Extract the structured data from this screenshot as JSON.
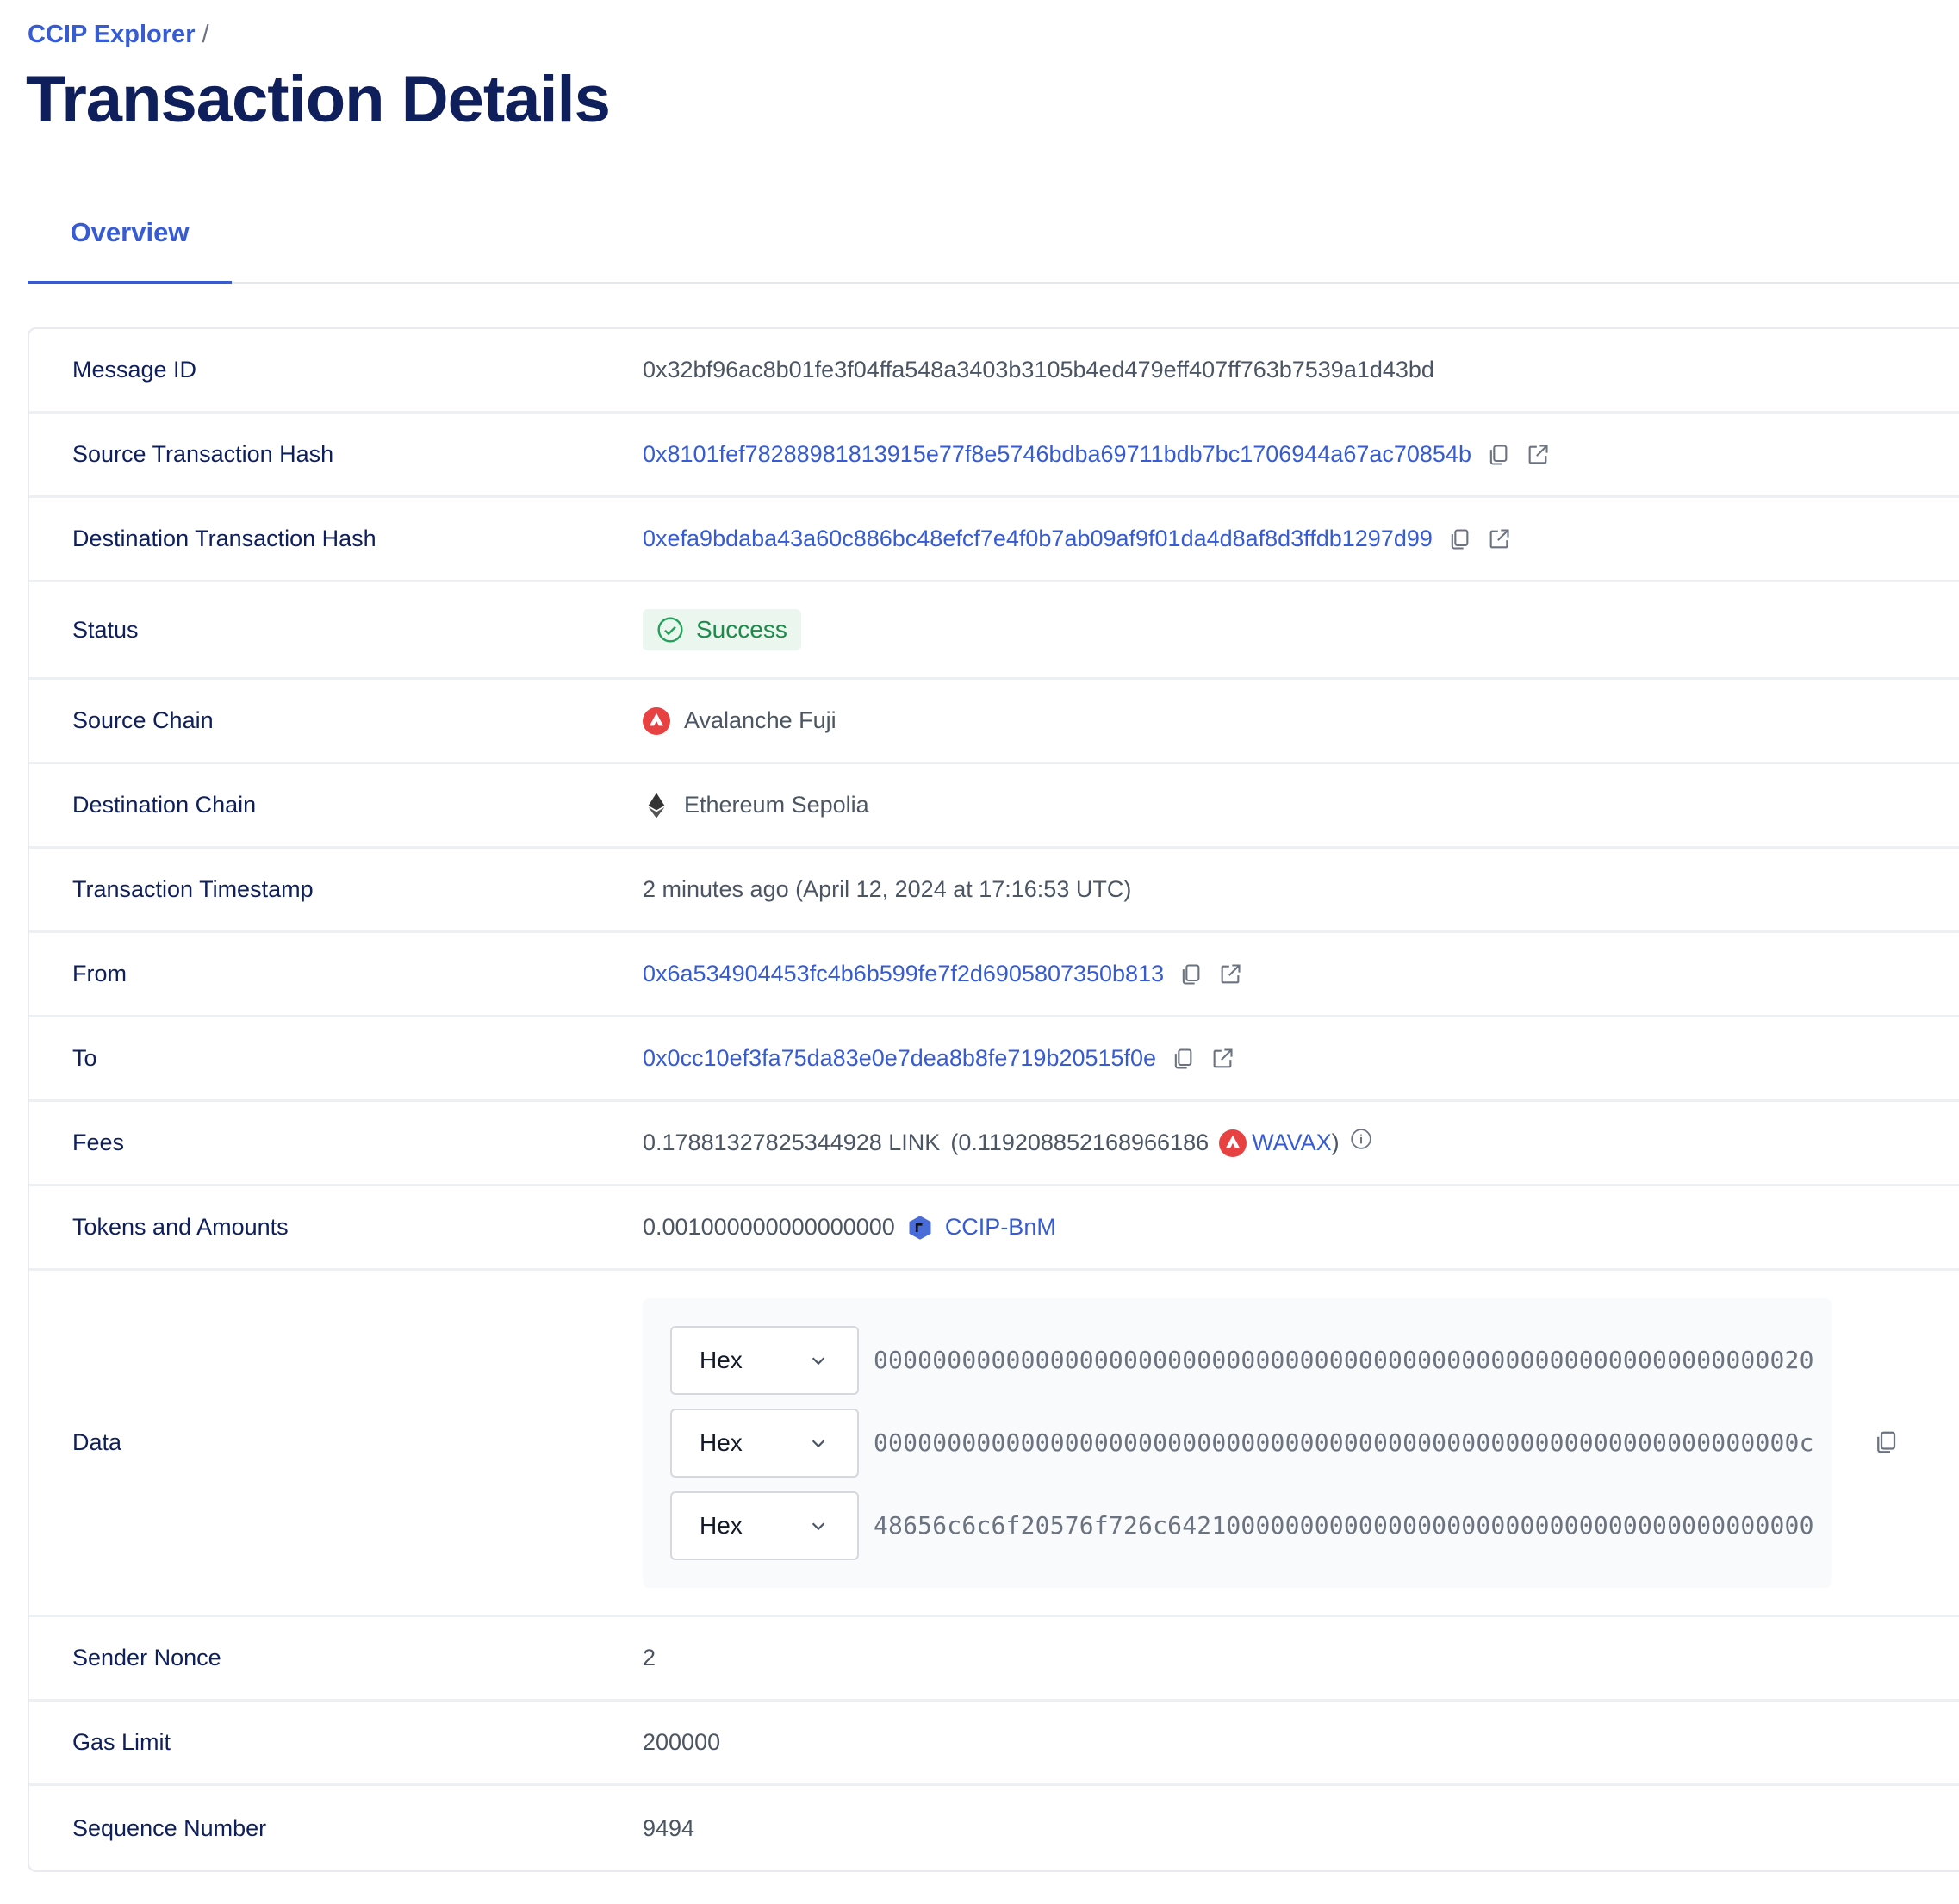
{
  "breadcrumb": {
    "root": "CCIP Explorer",
    "separator": "/"
  },
  "page_title": "Transaction Details",
  "tabs": [
    {
      "label": "Overview",
      "active": true
    }
  ],
  "colors": {
    "accent": "#375bd2",
    "success": "#1f8a4c",
    "avalanche": "#e84142",
    "heading": "#0f1f5c"
  },
  "details": {
    "message_id": {
      "label": "Message ID",
      "value": "0x32bf96ac8b01fe3f04ffa548a3403b3105b4ed479eff407ff763b7539a1d43bd"
    },
    "source_tx": {
      "label": "Source Transaction Hash",
      "value": "0x8101fef78288981813915e77f8e5746bdba69711bdb7bc1706944a67ac70854b"
    },
    "dest_tx": {
      "label": "Destination Transaction Hash",
      "value": "0xefa9bdaba43a60c886bc48efcf7e4f0b7ab09af9f01da4d8af8d3ffdb1297d99"
    },
    "status": {
      "label": "Status",
      "value": "Success",
      "icon": "check-circle-icon"
    },
    "source_chain": {
      "label": "Source Chain",
      "value": "Avalanche Fuji",
      "icon": "avalanche-icon"
    },
    "dest_chain": {
      "label": "Destination Chain",
      "value": "Ethereum Sepolia",
      "icon": "ethereum-icon"
    },
    "timestamp": {
      "label": "Transaction Timestamp",
      "value": "2 minutes ago (April 12, 2024 at 17:16:53 UTC)"
    },
    "from": {
      "label": "From",
      "value": "0x6a534904453fc4b6b599fe7f2d6905807350b813"
    },
    "to": {
      "label": "To",
      "value": "0x0cc10ef3fa75da83e0e7dea8b8fe719b20515f0e"
    },
    "fees": {
      "label": "Fees",
      "link_amount": "0.17881327825344928 LINK",
      "native_open": "(0.119208852168966186",
      "native_token": "WAVAX",
      "native_close": ")"
    },
    "tokens": {
      "label": "Tokens and Amounts",
      "amount": "0.001000000000000000",
      "token": "CCIP-BnM"
    },
    "data": {
      "label": "Data",
      "rows": [
        {
          "format": "Hex",
          "value": "0000000000000000000000000000000000000000000000000000000000000020"
        },
        {
          "format": "Hex",
          "value": "000000000000000000000000000000000000000000000000000000000000000c"
        },
        {
          "format": "Hex",
          "value": "48656c6c6f20576f726c64210000000000000000000000000000000000000000"
        }
      ]
    },
    "nonce": {
      "label": "Sender Nonce",
      "value": "2"
    },
    "gas_limit": {
      "label": "Gas Limit",
      "value": "200000"
    },
    "sequence": {
      "label": "Sequence Number",
      "value": "9494"
    }
  }
}
